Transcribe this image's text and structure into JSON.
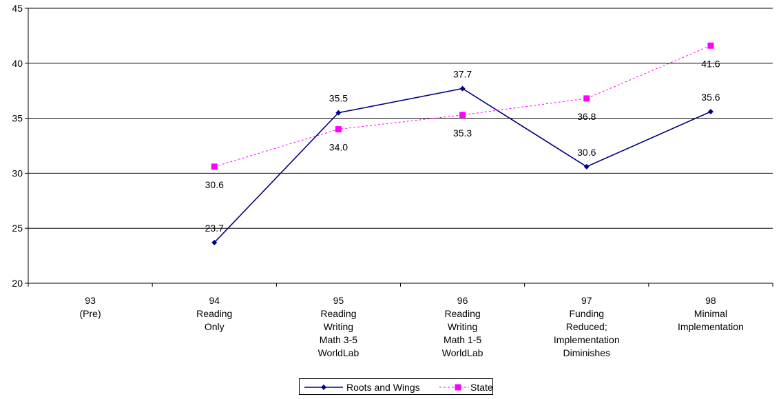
{
  "chart_data": {
    "type": "line",
    "title": "",
    "xlabel": "",
    "ylabel": "",
    "ylim": [
      20,
      45
    ],
    "yticks": [
      20,
      25,
      30,
      35,
      40,
      45
    ],
    "grid": "horizontal",
    "legend_position": "bottom-center",
    "categories": [
      [
        "93",
        "(Pre)"
      ],
      [
        "94",
        "Reading",
        "Only"
      ],
      [
        "95",
        "Reading",
        "Writing",
        "Math 3-5",
        "WorldLab"
      ],
      [
        "96",
        "Reading",
        "Writing",
        "Math 1-5",
        "WorldLab"
      ],
      [
        "97",
        "Funding",
        "Reduced;",
        "Implementation",
        "Diminishes"
      ],
      [
        "98",
        "Minimal",
        "Implementation"
      ]
    ],
    "series": [
      {
        "name": "Roots and Wings",
        "color": "#000080",
        "line_style": "solid",
        "marker": "diamond",
        "label_position": "above",
        "values": [
          null,
          23.7,
          35.5,
          37.7,
          30.6,
          35.6
        ],
        "labels": [
          "",
          "23.7",
          "35.5",
          "37.7",
          "30.6",
          "35.6"
        ]
      },
      {
        "name": "State",
        "color": "#ff00ff",
        "line_style": "dashed",
        "marker": "square",
        "label_position": "below",
        "values": [
          null,
          30.6,
          34.0,
          35.3,
          36.8,
          41.6
        ],
        "labels": [
          "",
          "30.6",
          "34.0",
          "35.3",
          "36.8",
          "41.6"
        ]
      }
    ]
  }
}
